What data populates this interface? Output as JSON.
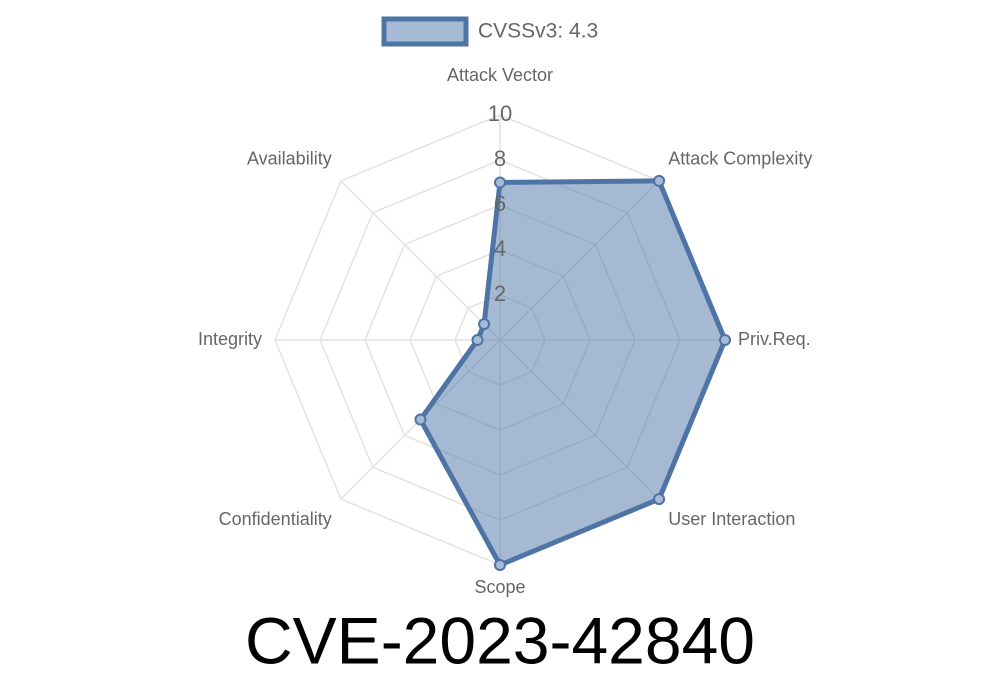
{
  "chart_data": {
    "type": "radar",
    "title": "CVE-2023-42840",
    "categories": [
      "Attack Vector",
      "Attack Complexity",
      "Priv.Req.",
      "User Interaction",
      "Scope",
      "Confidentiality",
      "Integrity",
      "Availability"
    ],
    "series": [
      {
        "name": "CVSSv3: 4.3",
        "color": "#4e74a6",
        "values": [
          7,
          10,
          10,
          10,
          10,
          5,
          1,
          1
        ]
      }
    ],
    "ylim": [
      0,
      10
    ],
    "yticks": [
      2,
      4,
      6,
      8,
      10
    ],
    "grid": true,
    "legend": "top"
  }
}
